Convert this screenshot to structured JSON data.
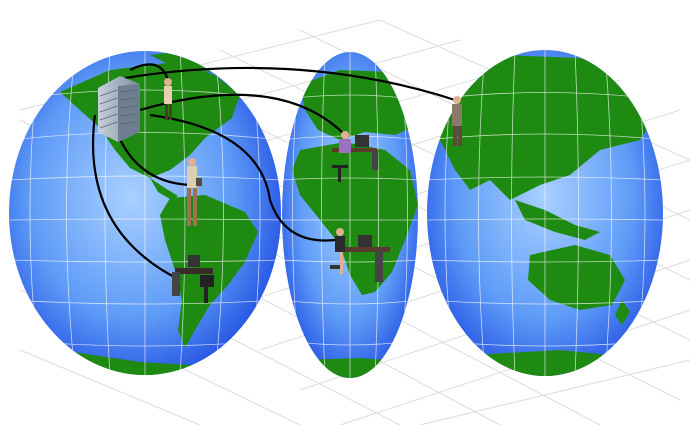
{
  "colors": {
    "ocean_center": "#9ec8ff",
    "ocean_edge": "#1e4fe6",
    "land": "#1f8a12",
    "land_dark": "#146b0a",
    "grid": "#ffffff",
    "floor_grid": "#d7d7d7",
    "cable": "#000000",
    "building": "#9aa8b8"
  },
  "scene": {
    "map_projection": "interrupted-globe",
    "lobes": [
      "americas",
      "europe-africa",
      "asia-oceania"
    ],
    "hub": "office-building",
    "nodes": [
      "woman-standing-near-building",
      "man-standing-east-asia",
      "man-seated-at-workstation-europe",
      "man-standing-with-bag-south-america",
      "workstation-south-america",
      "woman-seated-at-workstation-africa"
    ]
  }
}
